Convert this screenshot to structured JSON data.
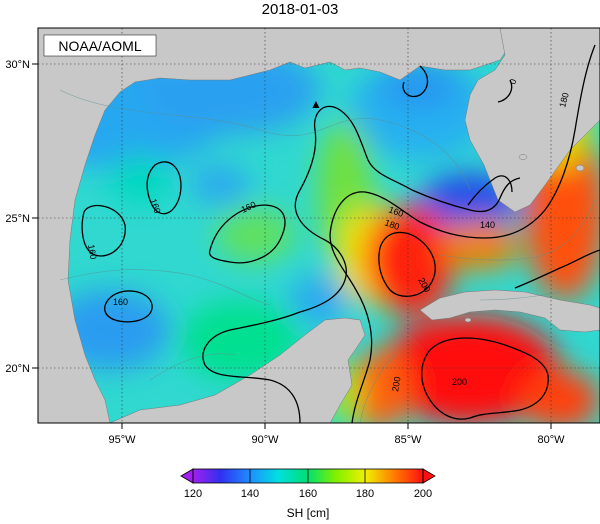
{
  "title": "2018-01-03",
  "credit": "NOAA/AOML",
  "marker_symbol": "▲",
  "latitude_labels": [
    "30°N",
    "25°N",
    "20°N"
  ],
  "longitude_labels": [
    "95°W",
    "90°W",
    "85°W",
    "80°W"
  ],
  "contour_labels": [
    "160",
    "160",
    "160",
    "160",
    "160",
    "180",
    "180",
    "200",
    "200",
    "200",
    "140",
    "0"
  ],
  "colorbar": {
    "label": "SH [cm]",
    "ticks": [
      "120",
      "140",
      "160",
      "180",
      "200"
    ],
    "colors": [
      "#a020f0",
      "#3030f0",
      "#1e90ff",
      "#00e0e0",
      "#00e070",
      "#80f000",
      "#f0f000",
      "#ff8000",
      "#ff1010"
    ]
  },
  "colors": {
    "land": "#c8c8c8",
    "frame": "#000000",
    "grid": "#555555"
  }
}
